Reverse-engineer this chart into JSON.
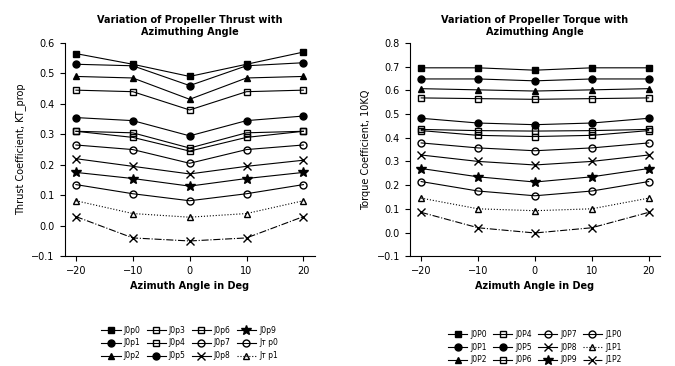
{
  "x": [
    -20,
    -10,
    0,
    10,
    20
  ],
  "left_title": "Variation of Propeller Thrust with\nAzimuthing Angle",
  "left_xlabel": "Azimuth Angle in Deg",
  "left_ylabel": "Thrust Coefficient, KT_prop",
  "left_ylim": [
    -0.1,
    0.6
  ],
  "left_yticks": [
    -0.1,
    0,
    0.1,
    0.2,
    0.3,
    0.4,
    0.5,
    0.6
  ],
  "right_title": "Variation of Propeller Torque with\nAzimuthing Angle",
  "right_xlabel": "Azimuth Angle in Deg",
  "right_ylabel": "Torque Coefficient, 10KQ",
  "right_ylim": [
    -0.1,
    0.8
  ],
  "right_yticks": [
    -0.1,
    0,
    0.1,
    0.2,
    0.3,
    0.4,
    0.5,
    0.6,
    0.7,
    0.8
  ],
  "thrust_series": {
    "J0p0": [
      0.565,
      0.53,
      0.49,
      0.53,
      0.57
    ],
    "J0p1": [
      0.53,
      0.525,
      0.46,
      0.525,
      0.535
    ],
    "J0p2": [
      0.49,
      0.485,
      0.415,
      0.485,
      0.49
    ],
    "J0p3": [
      0.445,
      0.44,
      0.38,
      0.44,
      0.445
    ],
    "J0p4": [
      0.31,
      0.305,
      0.255,
      0.305,
      0.31
    ],
    "J0p5": [
      0.355,
      0.345,
      0.295,
      0.345,
      0.36
    ],
    "J0p6": [
      0.31,
      0.29,
      0.245,
      0.29,
      0.31
    ],
    "J0p7": [
      0.265,
      0.25,
      0.205,
      0.25,
      0.265
    ],
    "J0p8": [
      0.22,
      0.195,
      0.17,
      0.195,
      0.215
    ],
    "J0p9": [
      0.175,
      0.155,
      0.13,
      0.155,
      0.175
    ],
    "J1p0": [
      0.135,
      0.105,
      0.082,
      0.105,
      0.135
    ],
    "J1p1": [
      0.082,
      0.04,
      0.028,
      0.04,
      0.082
    ],
    "J1p2": [
      0.03,
      -0.04,
      -0.05,
      -0.04,
      0.03
    ]
  },
  "torque_series": {
    "J0P0": [
      0.695,
      0.695,
      0.685,
      0.695,
      0.695
    ],
    "J0P1": [
      0.648,
      0.648,
      0.64,
      0.648,
      0.648
    ],
    "J0P2": [
      0.607,
      0.602,
      0.597,
      0.602,
      0.607
    ],
    "J0P3": [
      0.568,
      0.565,
      0.562,
      0.565,
      0.568
    ],
    "J0P4": [
      0.435,
      0.43,
      0.428,
      0.43,
      0.435
    ],
    "J0P5": [
      0.482,
      0.462,
      0.455,
      0.462,
      0.482
    ],
    "J0P6": [
      0.43,
      0.41,
      0.405,
      0.41,
      0.43
    ],
    "J0P7": [
      0.378,
      0.357,
      0.345,
      0.357,
      0.378
    ],
    "J0P8": [
      0.327,
      0.3,
      0.285,
      0.3,
      0.327
    ],
    "J0P9": [
      0.27,
      0.235,
      0.213,
      0.235,
      0.27
    ],
    "J1P0": [
      0.215,
      0.175,
      0.155,
      0.175,
      0.215
    ],
    "J1P1": [
      0.145,
      0.1,
      0.092,
      0.1,
      0.145
    ],
    "J1P2": [
      0.085,
      0.02,
      -0.002,
      0.02,
      0.085
    ]
  },
  "thrust_styles": {
    "J0p0": {
      "marker": "s",
      "linestyle": "-",
      "filled": true,
      "ms": 5
    },
    "J0p1": {
      "marker": "o",
      "linestyle": "-",
      "filled": true,
      "ms": 5
    },
    "J0p2": {
      "marker": "^",
      "linestyle": "-",
      "filled": true,
      "ms": 5
    },
    "J0p3": {
      "marker": "s",
      "linestyle": "-",
      "filled": false,
      "ms": 4
    },
    "J0p4": {
      "marker": "s",
      "linestyle": "-",
      "filled": false,
      "ms": 4
    },
    "J0p5": {
      "marker": "o",
      "linestyle": "-",
      "filled": true,
      "ms": 5
    },
    "J0p6": {
      "marker": "s",
      "linestyle": "-",
      "filled": false,
      "ms": 5
    },
    "J0p7": {
      "marker": "o",
      "linestyle": "-",
      "filled": false,
      "ms": 5
    },
    "J0p8": {
      "marker": "x",
      "linestyle": "-",
      "filled": true,
      "ms": 6
    },
    "J0p9": {
      "marker": "*",
      "linestyle": "-",
      "filled": true,
      "ms": 7
    },
    "J1p0": {
      "marker": "o",
      "linestyle": "-",
      "filled": false,
      "ms": 5
    },
    "J1p1": {
      "marker": "^",
      "linestyle": ":",
      "filled": false,
      "ms": 5
    },
    "J1p2": {
      "marker": "x",
      "linestyle": "-.",
      "filled": true,
      "ms": 6
    }
  },
  "torque_styles": {
    "J0P0": {
      "marker": "s",
      "linestyle": "-",
      "filled": true,
      "ms": 5
    },
    "J0P1": {
      "marker": "o",
      "linestyle": "-",
      "filled": true,
      "ms": 5
    },
    "J0P2": {
      "marker": "^",
      "linestyle": "-",
      "filled": true,
      "ms": 5
    },
    "J0P3": {
      "marker": "s",
      "linestyle": "-",
      "filled": false,
      "ms": 4
    },
    "J0P4": {
      "marker": "s",
      "linestyle": "-",
      "filled": false,
      "ms": 4
    },
    "J0P5": {
      "marker": "o",
      "linestyle": "-",
      "filled": true,
      "ms": 5
    },
    "J0P6": {
      "marker": "s",
      "linestyle": "-",
      "filled": false,
      "ms": 5
    },
    "J0P7": {
      "marker": "o",
      "linestyle": "-",
      "filled": false,
      "ms": 5
    },
    "J0P8": {
      "marker": "x",
      "linestyle": "-",
      "filled": true,
      "ms": 6
    },
    "J0P9": {
      "marker": "*",
      "linestyle": "-",
      "filled": true,
      "ms": 7
    },
    "J1P0": {
      "marker": "o",
      "linestyle": "-",
      "filled": false,
      "ms": 5
    },
    "J1P1": {
      "marker": "^",
      "linestyle": ":",
      "filled": false,
      "ms": 5
    },
    "J1P2": {
      "marker": "x",
      "linestyle": "-.",
      "filled": true,
      "ms": 6
    }
  },
  "thrust_legend_keys": [
    "J0p0",
    "J0p1",
    "J0p2",
    "J0p3",
    "J0p4",
    "J0p5",
    "J0p6",
    "J0p7",
    "J0p8",
    "J0p9",
    "J1p0",
    "J1p1"
  ],
  "thrust_legend_labels": [
    "J0p0",
    "J0p1",
    "J0p2",
    "J0p3",
    "J0p4",
    "J0p5",
    "J0p6",
    "J0p7",
    "J0p8",
    "J0p9",
    "Jᴛ p0",
    "Jᴛ p1"
  ],
  "torque_legend_keys": [
    "J0P0",
    "J0P1",
    "J0P2",
    "J0P3",
    "J0P4",
    "J0P5",
    "J0P6",
    "J0P7",
    "J0P8",
    "J0P9",
    "J1P0",
    "J1P1",
    "J1P2"
  ],
  "torque_legend_labels": [
    "J0P0",
    "J0P1",
    "J0P2",
    "J0P3",
    "J0P4",
    "J0P5",
    "J0P6",
    "J0P7",
    "J0P8",
    "J0P9",
    "J1P0",
    "J1P1",
    "J1P2"
  ],
  "color": "black",
  "bg_color": "white"
}
